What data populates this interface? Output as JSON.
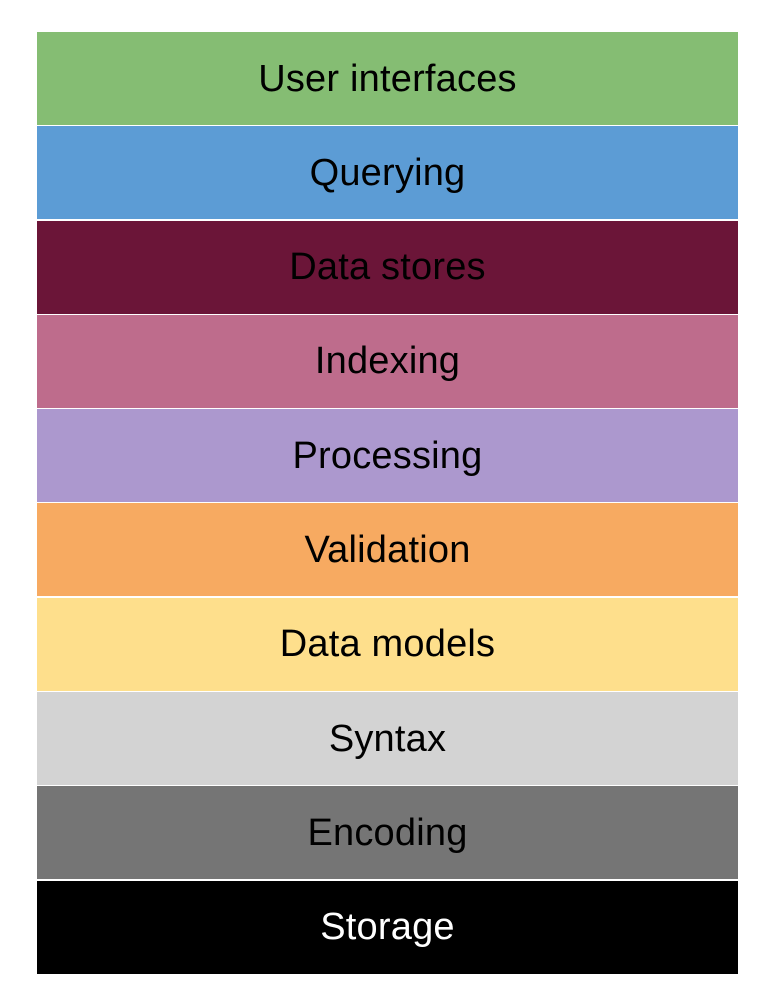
{
  "diagram": {
    "layers": [
      {
        "label": "User interfaces",
        "color": "#85BD73",
        "text_color": "#000000"
      },
      {
        "label": "Querying",
        "color": "#5C9CD5",
        "text_color": "#000000"
      },
      {
        "label": "Data stores",
        "color": "#6B1538",
        "text_color": "#000000"
      },
      {
        "label": "Indexing",
        "color": "#BE6C8C",
        "text_color": "#000000"
      },
      {
        "label": "Processing",
        "color": "#AC98CE",
        "text_color": "#000000"
      },
      {
        "label": "Validation",
        "color": "#F7AA61",
        "text_color": "#000000"
      },
      {
        "label": "Data models",
        "color": "#FEDF8C",
        "text_color": "#000000"
      },
      {
        "label": "Syntax",
        "color": "#D3D3D3",
        "text_color": "#000000"
      },
      {
        "label": "Encoding",
        "color": "#757575",
        "text_color": "#000000"
      },
      {
        "label": "Storage",
        "color": "#000000",
        "text_color": "#FFFFFF"
      }
    ]
  }
}
